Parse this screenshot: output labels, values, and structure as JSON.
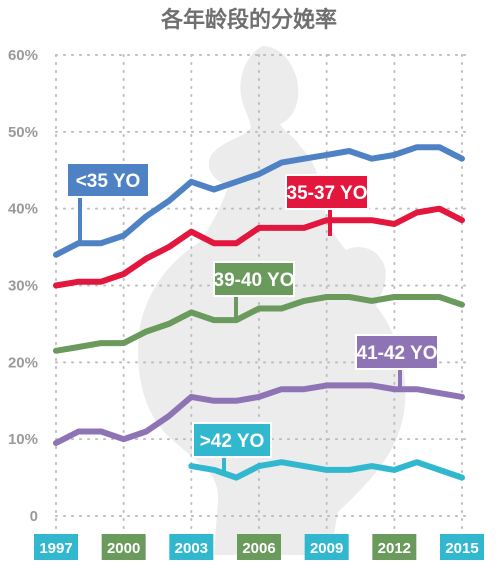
{
  "chart_data": {
    "type": "line",
    "title": "各年龄段的分娩率",
    "x_ticks": [
      "1997",
      "2000",
      "2003",
      "2006",
      "2009",
      "2012",
      "2015"
    ],
    "y_ticks": [
      "0",
      "10%",
      "20%",
      "30%",
      "40%",
      "50%",
      "60%"
    ],
    "ylim": [
      0,
      60
    ],
    "xlim": [
      1997,
      2015
    ],
    "grid": true,
    "series": [
      {
        "name": "<35 YO",
        "color": "#4f82c4",
        "x": [
          1997,
          1998,
          1999,
          2000,
          2001,
          2002,
          2003,
          2004,
          2005,
          2006,
          2007,
          2008,
          2009,
          2010,
          2011,
          2012,
          2013,
          2014,
          2015
        ],
        "values": [
          34,
          35.5,
          35.5,
          36.5,
          39,
          41,
          43.5,
          42.5,
          43.5,
          44.5,
          46,
          46.5,
          47,
          47.5,
          46.5,
          47,
          48,
          48,
          46.5
        ]
      },
      {
        "name": "35-37 YO",
        "color": "#e3173e",
        "x": [
          1997,
          1998,
          1999,
          2000,
          2001,
          2002,
          2003,
          2004,
          2005,
          2006,
          2007,
          2008,
          2009,
          2010,
          2011,
          2012,
          2013,
          2014,
          2015
        ],
        "values": [
          30,
          30.5,
          30.5,
          31.5,
          33.5,
          35,
          37,
          35.5,
          35.5,
          37.5,
          37.5,
          37.5,
          38.5,
          38.5,
          38.5,
          38,
          39.5,
          40,
          38.5
        ]
      },
      {
        "name": "39-40 YO",
        "color": "#6a9a5c",
        "x": [
          1997,
          1998,
          1999,
          2000,
          2001,
          2002,
          2003,
          2004,
          2005,
          2006,
          2007,
          2008,
          2009,
          2010,
          2011,
          2012,
          2013,
          2014,
          2015
        ],
        "values": [
          21.5,
          22,
          22.5,
          22.5,
          24,
          25,
          26.5,
          25.5,
          25.5,
          27,
          27,
          28,
          28.5,
          28.5,
          28,
          28.5,
          28.5,
          28.5,
          27.5
        ]
      },
      {
        "name": "41-42 YO",
        "color": "#8e74b4",
        "x": [
          1997,
          1998,
          1999,
          2000,
          2001,
          2002,
          2003,
          2004,
          2005,
          2006,
          2007,
          2008,
          2009,
          2010,
          2011,
          2012,
          2013,
          2014,
          2015
        ],
        "values": [
          9.5,
          11,
          11,
          10,
          11,
          13,
          15.5,
          15,
          15,
          15.5,
          16.5,
          16.5,
          17,
          17,
          17,
          16.5,
          16.5,
          16,
          15.5
        ]
      },
      {
        "name": ">42 YO",
        "color": "#31b8cf",
        "x": [
          2003,
          2004,
          2005,
          2006,
          2007,
          2008,
          2009,
          2010,
          2011,
          2012,
          2013,
          2014,
          2015
        ],
        "values": [
          6.5,
          6,
          5,
          6.5,
          7,
          6.5,
          6,
          6,
          6.5,
          6,
          7,
          6,
          5
        ]
      }
    ],
    "x_tick_colors": [
      "#31b8cf",
      "#6a9a5c",
      "#31b8cf",
      "#6a9a5c",
      "#31b8cf",
      "#6a9a5c",
      "#31b8cf"
    ],
    "background_silhouette_color": "#ececec",
    "grid_color": "#bdbdbd"
  }
}
